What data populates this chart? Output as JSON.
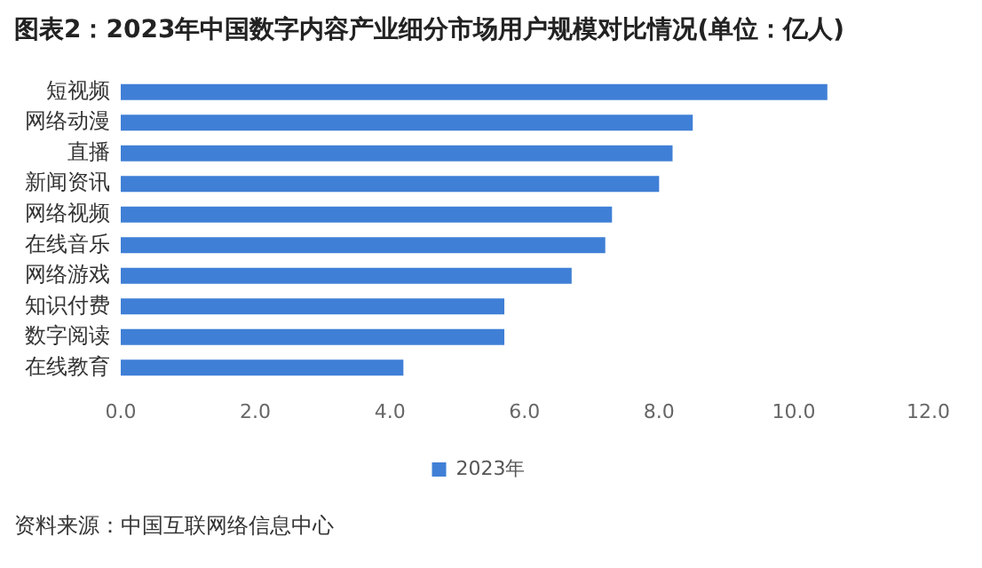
{
  "chart_data": {
    "type": "bar",
    "orientation": "horizontal",
    "title": "图表2：2023年中国数字内容产业细分市场用户规模对比情况(单位：亿人)",
    "categories": [
      "短视频",
      "网络动漫",
      "直播",
      "新闻资讯",
      "网络视频",
      "在线音乐",
      "网络游戏",
      "知识付费",
      "数字阅读",
      "在线教育"
    ],
    "series": [
      {
        "name": "2023年",
        "color": "#3f7fd6",
        "values": [
          10.5,
          8.5,
          8.2,
          8.0,
          7.3,
          7.2,
          6.7,
          5.7,
          5.7,
          4.2
        ]
      }
    ],
    "xlim": [
      0,
      12
    ],
    "xticks": [
      {
        "value": 0,
        "label": "0.0"
      },
      {
        "value": 2,
        "label": "2.0"
      },
      {
        "value": 4,
        "label": "4.0"
      },
      {
        "value": 6,
        "label": "6.0"
      },
      {
        "value": 8,
        "label": "8.0"
      },
      {
        "value": 10,
        "label": "10.0"
      },
      {
        "value": 12,
        "label": "12.0"
      }
    ],
    "grid": false,
    "legend": "bottom",
    "annotations": [
      "资料来源：中国互联网络信息中心"
    ]
  }
}
